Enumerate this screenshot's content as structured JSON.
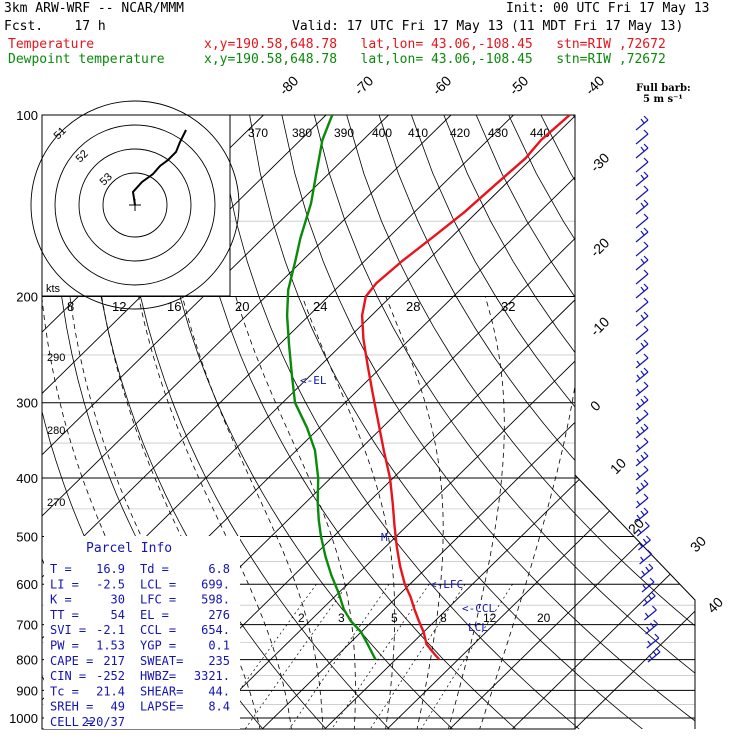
{
  "header": {
    "model": "3km ARW-WRF -- NCAR/MMM",
    "init": "Init: 00 UTC Fri 17 May 13",
    "fcst": "Fcst.    17 h",
    "valid": "Valid: 17 UTC Fri 17 May 13 (11 MDT Fri 17 May 13)",
    "temp_label": "Temperature",
    "dew_label": "Dewpoint temperature",
    "temp_info": "x,y=190.58,648.78   lat,lon= 43.06,-108.45   stn=RIW ,72672",
    "dew_info": "x,y=190.58,648.78   lat,lon= 43.06,-108.45   stn=RIW ,72672",
    "temp_color": "#e8141c",
    "dew_color": "#0a8a0a"
  },
  "barb_legend": {
    "title": "Full barb:",
    "value": "5 m s⁻¹"
  },
  "hodograph": {
    "units": "kts",
    "ring_labels": [
      "15",
      "25",
      "35"
    ],
    "wind_ticks": [
      "8",
      "12",
      "16",
      "20",
      "24",
      "28",
      "32"
    ]
  },
  "theta_ticks": [
    "370",
    "380",
    "390",
    "400",
    "410",
    "420",
    "430",
    "440"
  ],
  "isotherm_labels": [
    "-80",
    "-70",
    "-60",
    "-50",
    "-40",
    "-30",
    "-20",
    "-10",
    "0",
    "10",
    "20",
    "30",
    "40"
  ],
  "dry_adiabat_labels": [
    "290",
    "280",
    "270"
  ],
  "mixing_ratio_labels": [
    "2",
    "3",
    "5",
    "8",
    "12",
    "20"
  ],
  "parcel_markers": [
    "<-EL",
    "M",
    "<-LFC",
    "<-CCL",
    "LCL"
  ],
  "parcel_info": {
    "title": "Parcel Info",
    "rows": [
      [
        "T  =",
        "16.9",
        "Td =",
        "6.8"
      ],
      [
        "LI =",
        "-2.5",
        "LCL =",
        "699."
      ],
      [
        "K  =",
        "30",
        "LFC =",
        "598."
      ],
      [
        "TT =",
        "54",
        "EL  =",
        "276"
      ],
      [
        "SVI =",
        "-2.1",
        "CCL =",
        "654."
      ],
      [
        "PW =",
        "1.53",
        "YGP =",
        "0.1"
      ],
      [
        "CAPE =",
        "217",
        "SWEAT=",
        "235"
      ],
      [
        "CIN =",
        "-252",
        "HWBZ=",
        "3321."
      ],
      [
        "Tc =",
        "21.4",
        "SHEAR=",
        "44."
      ],
      [
        "SREH =",
        "49",
        "LAPSE=",
        "8.4"
      ],
      [
        "CELL =",
        "220/37",
        "",
        ""
      ]
    ]
  },
  "chart_data": {
    "type": "line",
    "title": "",
    "x_scale": "skew-T (temperature, °C)",
    "y_scale": "log pressure (hPa), inverted",
    "ylim": [
      1000,
      100
    ],
    "pressure_ticks": [
      "100",
      "200",
      "300",
      "400",
      "500",
      "600",
      "700",
      "800",
      "900",
      "1000"
    ],
    "series": [
      {
        "name": "Temperature",
        "color": "#e8141c",
        "points": [
          [
            800,
            17.0
          ],
          [
            780,
            15.0
          ],
          [
            755,
            12.5
          ],
          [
            720,
            10.0
          ],
          [
            690,
            7.4
          ],
          [
            660,
            4.8
          ],
          [
            630,
            2.2
          ],
          [
            600,
            -0.8
          ],
          [
            560,
            -4.5
          ],
          [
            520,
            -8.2
          ],
          [
            480,
            -12.0
          ],
          [
            440,
            -16.0
          ],
          [
            400,
            -20.5
          ],
          [
            360,
            -26.0
          ],
          [
            320,
            -32.0
          ],
          [
            290,
            -37.0
          ],
          [
            260,
            -42.5
          ],
          [
            235,
            -47.5
          ],
          [
            215,
            -51.5
          ],
          [
            200,
            -54.0
          ],
          [
            190,
            -54.5
          ],
          [
            175,
            -54.0
          ],
          [
            160,
            -53.0
          ],
          [
            145,
            -52.0
          ],
          [
            130,
            -51.5
          ],
          [
            118,
            -51.0
          ],
          [
            110,
            -51.5
          ],
          [
            100,
            -51.0
          ]
        ]
      },
      {
        "name": "Dewpoint temperature",
        "color": "#0a8a0a",
        "points": [
          [
            800,
            6.8
          ],
          [
            760,
            3.5
          ],
          [
            720,
            0.0
          ],
          [
            690,
            -3.5
          ],
          [
            660,
            -6.5
          ],
          [
            620,
            -10.0
          ],
          [
            580,
            -14.0
          ],
          [
            540,
            -18.0
          ],
          [
            500,
            -22.0
          ],
          [
            470,
            -25.0
          ],
          [
            440,
            -28.0
          ],
          [
            400,
            -32.0
          ],
          [
            360,
            -37.0
          ],
          [
            330,
            -42.0
          ],
          [
            300,
            -48.0
          ],
          [
            270,
            -53.0
          ],
          [
            240,
            -58.5
          ],
          [
            215,
            -63.5
          ],
          [
            195,
            -67.5
          ],
          [
            175,
            -71.0
          ],
          [
            160,
            -74.0
          ],
          [
            140,
            -78.0
          ],
          [
            125,
            -82.0
          ],
          [
            110,
            -86.5
          ],
          [
            100,
            -89.0
          ]
        ]
      }
    ],
    "wind_barbs_present": true,
    "hodograph_present": true
  }
}
